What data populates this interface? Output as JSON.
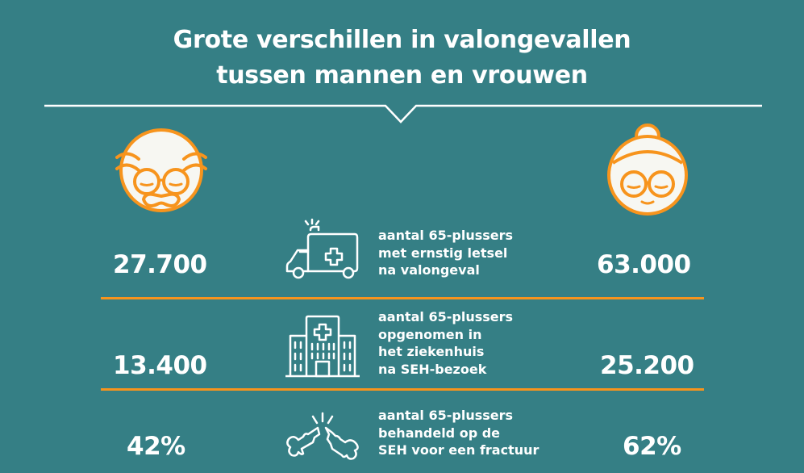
{
  "title": {
    "line1": "Grote verschillen in valongevallen",
    "line2": "tussen mannen en vrouwen"
  },
  "colors": {
    "background": "#357f85",
    "accent": "#f7941d",
    "text": "#ffffff",
    "face": "#f7f7f2"
  },
  "icons": {
    "men": "old-man-face-icon",
    "women": "old-woman-face-icon"
  },
  "rows": [
    {
      "icon": "ambulance-icon",
      "men": "27.700",
      "women": "63.000",
      "desc": [
        "aantal 65-plussers",
        "met ernstig letsel",
        "na valongeval"
      ]
    },
    {
      "icon": "hospital-icon",
      "men": "13.400",
      "women": "25.200",
      "desc": [
        "aantal 65-plussers",
        "opgenomen in",
        "het ziekenhuis",
        "na SEH-bezoek"
      ]
    },
    {
      "icon": "broken-bone-icon",
      "men": "42%",
      "women": "62%",
      "desc": [
        "aantal 65-plussers",
        "behandeld op de",
        "SEH voor een fractuur"
      ]
    }
  ]
}
